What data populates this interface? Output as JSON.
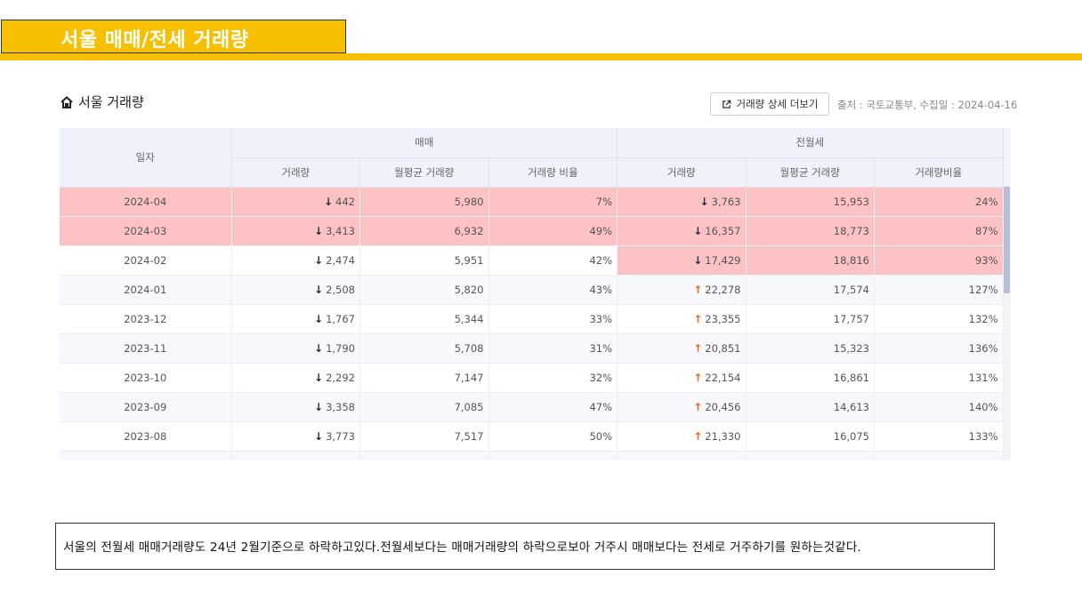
{
  "header": {
    "title": "서울 매매/전세 거래량"
  },
  "section": {
    "title": "서울 거래량",
    "icon": "home-icon"
  },
  "toolbar": {
    "more_label": "거래량 상세 더보기",
    "source": "출처 : 국토교통부, 수집일 : 2024-04-16"
  },
  "table": {
    "date_header": "일자",
    "group_sale": "매매",
    "group_rent": "전월세",
    "sub_headers": [
      "거래량",
      "월평균 거래량",
      "거래량 비율",
      "거래량",
      "월평균 거래량",
      "거래량비율"
    ],
    "rows": [
      {
        "date": "2024-04",
        "sale_vol": "442",
        "sale_dir": "down",
        "sale_avg": "5,980",
        "sale_ratio": "7%",
        "rent_vol": "3,763",
        "rent_dir": "down",
        "rent_avg": "15,953",
        "rent_ratio": "24%",
        "sale_hl": true,
        "rent_hl": true
      },
      {
        "date": "2024-03",
        "sale_vol": "3,413",
        "sale_dir": "down",
        "sale_avg": "6,932",
        "sale_ratio": "49%",
        "rent_vol": "16,357",
        "rent_dir": "down",
        "rent_avg": "18,773",
        "rent_ratio": "87%",
        "sale_hl": true,
        "rent_hl": true
      },
      {
        "date": "2024-02",
        "sale_vol": "2,474",
        "sale_dir": "down",
        "sale_avg": "5,951",
        "sale_ratio": "42%",
        "rent_vol": "17,429",
        "rent_dir": "down",
        "rent_avg": "18,816",
        "rent_ratio": "93%",
        "sale_hl": false,
        "rent_hl": true
      },
      {
        "date": "2024-01",
        "sale_vol": "2,508",
        "sale_dir": "down",
        "sale_avg": "5,820",
        "sale_ratio": "43%",
        "rent_vol": "22,278",
        "rent_dir": "up",
        "rent_avg": "17,574",
        "rent_ratio": "127%",
        "sale_hl": false,
        "rent_hl": false
      },
      {
        "date": "2023-12",
        "sale_vol": "1,767",
        "sale_dir": "down",
        "sale_avg": "5,344",
        "sale_ratio": "33%",
        "rent_vol": "23,355",
        "rent_dir": "up",
        "rent_avg": "17,757",
        "rent_ratio": "132%",
        "sale_hl": false,
        "rent_hl": false
      },
      {
        "date": "2023-11",
        "sale_vol": "1,790",
        "sale_dir": "down",
        "sale_avg": "5,708",
        "sale_ratio": "31%",
        "rent_vol": "20,851",
        "rent_dir": "up",
        "rent_avg": "15,323",
        "rent_ratio": "136%",
        "sale_hl": false,
        "rent_hl": false
      },
      {
        "date": "2023-10",
        "sale_vol": "2,292",
        "sale_dir": "down",
        "sale_avg": "7,147",
        "sale_ratio": "32%",
        "rent_vol": "22,154",
        "rent_dir": "up",
        "rent_avg": "16,861",
        "rent_ratio": "131%",
        "sale_hl": false,
        "rent_hl": false
      },
      {
        "date": "2023-09",
        "sale_vol": "3,358",
        "sale_dir": "down",
        "sale_avg": "7,085",
        "sale_ratio": "47%",
        "rent_vol": "20,456",
        "rent_dir": "up",
        "rent_avg": "14,613",
        "rent_ratio": "140%",
        "sale_hl": false,
        "rent_hl": false
      },
      {
        "date": "2023-08",
        "sale_vol": "3,773",
        "sale_dir": "down",
        "sale_avg": "7,517",
        "sale_ratio": "50%",
        "rent_vol": "21,330",
        "rent_dir": "up",
        "rent_avg": "16,075",
        "rent_ratio": "133%",
        "sale_hl": false,
        "rent_hl": false
      }
    ]
  },
  "colors": {
    "accent": "#f6c000",
    "highlight": "#fdc3c4",
    "up_arrow": "#f2651d",
    "down_arrow": "#222a44"
  },
  "note": {
    "text": "서울의 전월세 매매거래량도 24년 2월기준으로 하락하고있다.전월세보다는 매매거래량의 하락으로보아 거주시 매매보다는 전세로 거주하기를 원하는것같다."
  }
}
